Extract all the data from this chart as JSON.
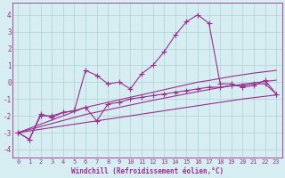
{
  "x": [
    0,
    1,
    2,
    3,
    4,
    5,
    6,
    7,
    8,
    9,
    10,
    11,
    12,
    13,
    14,
    15,
    16,
    17,
    18,
    19,
    20,
    21,
    22,
    23
  ],
  "line1": [
    -3.0,
    -3.4,
    -1.9,
    -2.1,
    -1.8,
    -1.7,
    0.7,
    0.4,
    -0.1,
    0.0,
    -0.4,
    0.5,
    1.0,
    1.8,
    2.8,
    3.6,
    4.0,
    3.5,
    -0.1,
    -0.1,
    -0.3,
    -0.2,
    0.1,
    -0.7
  ],
  "line2": [
    -3.0,
    -3.4,
    -2.0,
    -2.0,
    -1.8,
    -1.7,
    -1.5,
    -2.3,
    -1.3,
    -1.2,
    -1.0,
    -0.9,
    -0.8,
    -0.7,
    -0.6,
    -0.5,
    -0.4,
    -0.3,
    -0.3,
    -0.2,
    -0.2,
    -0.1,
    -0.1,
    -0.7
  ],
  "reg1": [
    -3.0,
    -2.75,
    -2.5,
    -2.25,
    -2.0,
    -1.75,
    -1.5,
    -1.35,
    -1.2,
    -1.05,
    -0.9,
    -0.75,
    -0.6,
    -0.45,
    -0.3,
    -0.15,
    0.0,
    0.1,
    0.22,
    0.34,
    0.44,
    0.54,
    0.62,
    0.7
  ],
  "reg2": [
    -3.0,
    -2.82,
    -2.64,
    -2.46,
    -2.28,
    -2.1,
    -1.92,
    -1.78,
    -1.64,
    -1.5,
    -1.36,
    -1.22,
    -1.08,
    -0.95,
    -0.82,
    -0.69,
    -0.56,
    -0.44,
    -0.32,
    -0.22,
    -0.12,
    -0.04,
    0.04,
    0.12
  ],
  "reg3": [
    -3.0,
    -2.9,
    -2.8,
    -2.7,
    -2.6,
    -2.5,
    -2.4,
    -2.3,
    -2.2,
    -2.1,
    -2.0,
    -1.9,
    -1.8,
    -1.7,
    -1.6,
    -1.5,
    -1.4,
    -1.3,
    -1.2,
    -1.1,
    -1.0,
    -0.92,
    -0.84,
    -0.76
  ],
  "color": "#9b2d8e",
  "bg_color": "#d6eef2",
  "grid_color": "#b0d0d8",
  "xlabel": "Windchill (Refroidissement éolien,°C)",
  "ylim": [
    -4.5,
    4.7
  ],
  "xlim": [
    -0.5,
    23.5
  ],
  "yticks": [
    -4,
    -3,
    -2,
    -1,
    0,
    1,
    2,
    3,
    4
  ],
  "xticks": [
    0,
    1,
    2,
    3,
    4,
    5,
    6,
    7,
    8,
    9,
    10,
    11,
    12,
    13,
    14,
    15,
    16,
    17,
    18,
    19,
    20,
    21,
    22,
    23
  ],
  "marker": "+",
  "markersize": 4.0,
  "linewidth": 0.8,
  "tick_fontsize": 5.0,
  "label_fontsize": 5.5
}
